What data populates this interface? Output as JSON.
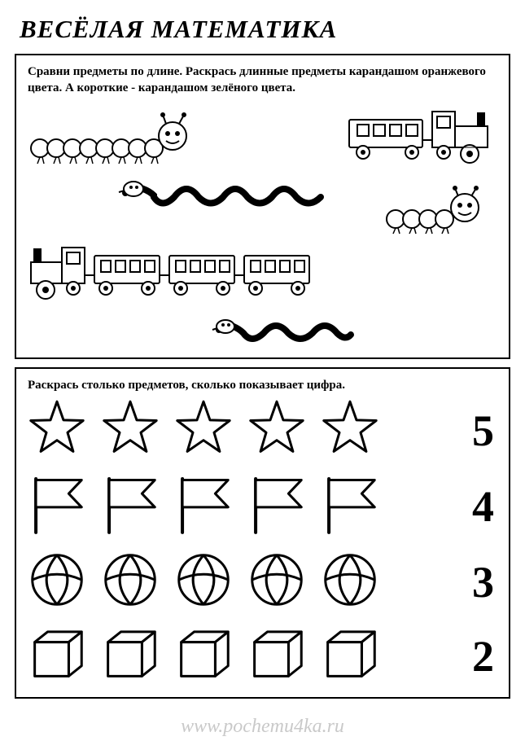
{
  "title": "ВЕСЁЛАЯ МАТЕМАТИКА",
  "panel1": {
    "instruction": "Сравни предметы по длине. Раскрась длинные предметы карандашом оранжевого цвета. А короткие - карандашом зелёного цвета.",
    "stroke": "#000000",
    "fill": "#ffffff"
  },
  "panel2": {
    "instruction": "Раскрась столько предметов, сколько показывает цифра.",
    "rows": [
      {
        "shape": "star",
        "count": 5,
        "number": "5"
      },
      {
        "shape": "flag",
        "count": 5,
        "number": "4"
      },
      {
        "shape": "ball",
        "count": 5,
        "number": "3"
      },
      {
        "shape": "cube",
        "count": 5,
        "number": "2"
      }
    ],
    "shape_size": 72,
    "stroke": "#000000",
    "stroke_width": 3,
    "fill": "#ffffff",
    "number_fontsize": 54
  },
  "watermark": "www.pochemu4ka.ru",
  "colors": {
    "border": "#000000",
    "bg": "#ffffff",
    "watermark": "#c9c9c9"
  }
}
